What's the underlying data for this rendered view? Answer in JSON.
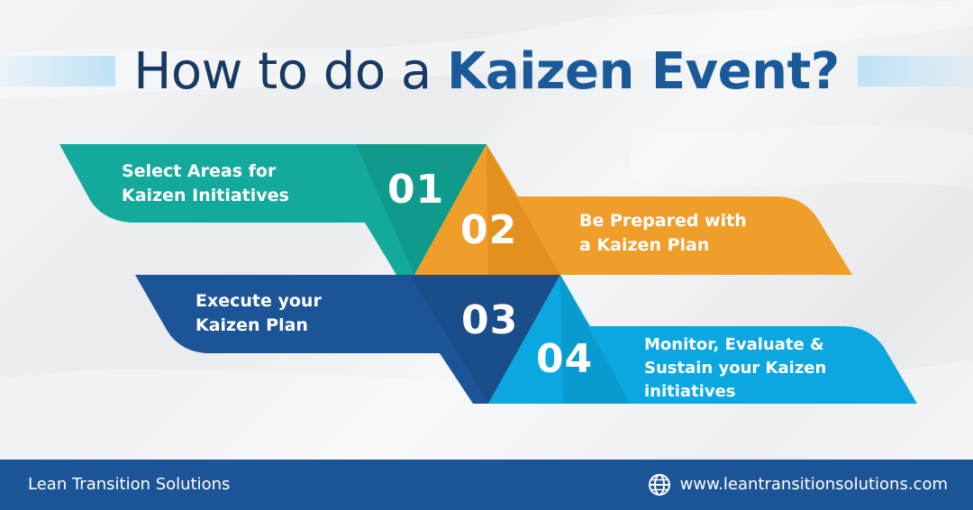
{
  "title": {
    "regular": "How to do a",
    "bold": "Kaizen Event?"
  },
  "steps": [
    {
      "number": "01",
      "lines": [
        "Select Areas for",
        "Kaizen Initiatives"
      ],
      "color": "#13aa9b",
      "dark": "#0e8c80"
    },
    {
      "number": "02",
      "lines": [
        "Be Prepared with",
        "a Kaizen Plan"
      ],
      "color": "#f09e2a",
      "dark": "#dc8718"
    },
    {
      "number": "03",
      "lines": [
        "Execute your",
        "Kaizen Plan"
      ],
      "color": "#1c5597",
      "dark": "#174880"
    },
    {
      "number": "04",
      "lines": [
        "Monitor, Evaluate &",
        "Sustain your Kaizen",
        "initiatives"
      ],
      "color": "#0ba7e0",
      "dark": "#0891c4"
    }
  ],
  "footer": {
    "brand": "Lean Transition Solutions",
    "url": "www.leantransitionsolutions.com",
    "icon": "globe-icon"
  }
}
